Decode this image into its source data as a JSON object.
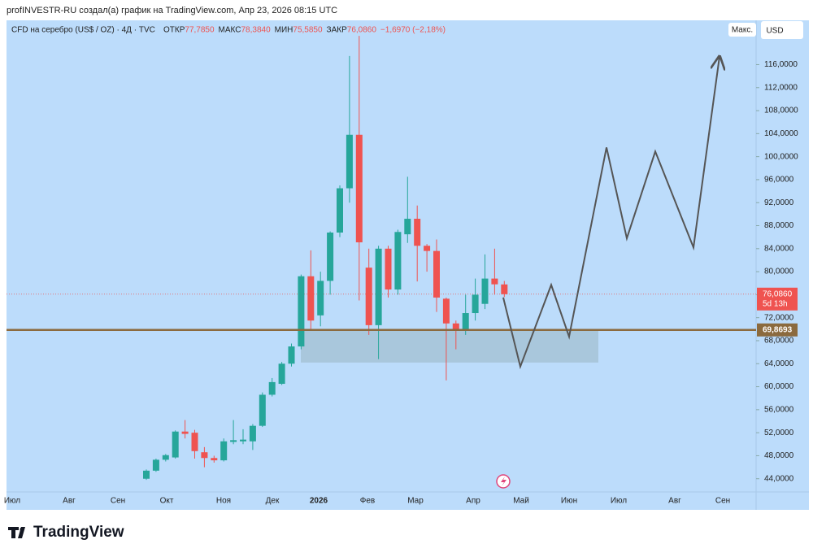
{
  "header": {
    "attribution": "profINVESTR-RU создал(а) график на TradingView.com, Апр 23, 2026 08:15 UTC"
  },
  "footer": {
    "logo": "TradingView"
  },
  "toolbar": {
    "scale_button": "Макс.",
    "currency_button": "USD"
  },
  "chart_data": {
    "type": "candlestick",
    "symbol": "CFD на серебро (US$ / OZ) · 4Д · TVC",
    "legend": [
      {
        "label": "ОТКР",
        "value": "77,7850"
      },
      {
        "label": "МАКС",
        "value": "78,3840"
      },
      {
        "label": "МИН",
        "value": "75,5850"
      },
      {
        "label": "ЗАКР",
        "value": "76,0860"
      }
    ],
    "change": "−1,6970 (−2,18%)",
    "up_color": "#26a69a",
    "down_color": "#ef5350",
    "x_labels": [
      "Июл",
      "Авг",
      "Сен",
      "Окт",
      "Ноя",
      "Дек",
      "2026",
      "Фев",
      "Мар",
      "Апр",
      "Май",
      "Июн",
      "Июл",
      "Авг",
      "Сен"
    ],
    "candles": {
      "open": [
        44.0,
        45.4,
        47.3,
        47.7,
        52.2,
        52.0,
        48.6,
        47.6,
        47.2,
        50.4,
        50.5,
        50.5,
        53.2,
        58.6,
        60.5,
        64.0,
        67.0,
        79.2,
        72.4,
        78.4,
        86.8,
        94.5,
        103.8,
        80.7,
        70.7,
        84.0,
        76.9,
        86.5,
        89.2,
        84.5,
        83.6,
        75.3,
        71.0,
        69.8,
        72.8,
        74.4,
        78.8,
        77.785
      ],
      "high": [
        45.6,
        47.5,
        48.3,
        52.4,
        54.2,
        52.5,
        49.5,
        48.0,
        51.0,
        54.2,
        52.6,
        53.5,
        59.0,
        61.5,
        64.3,
        67.5,
        79.5,
        83.7,
        80.0,
        87.0,
        95.0,
        117.5,
        121.0,
        84.0,
        84.5,
        84.5,
        87.3,
        96.5,
        91.5,
        84.8,
        85.6,
        75.5,
        71.5,
        76.0,
        78.8,
        83.0,
        84.0,
        78.384
      ],
      "low": [
        43.8,
        45.2,
        47.0,
        47.5,
        51.0,
        47.5,
        46.0,
        46.8,
        47.0,
        50.0,
        50.0,
        49.0,
        53.0,
        58.3,
        60.3,
        63.5,
        66.5,
        70.0,
        70.5,
        76.0,
        86.0,
        92.0,
        75.0,
        69.0,
        64.8,
        75.5,
        76.0,
        85.0,
        78.3,
        80.0,
        73.0,
        61.1,
        66.5,
        69.0,
        71.5,
        73.5,
        76.0,
        75.585
      ],
      "close": [
        45.4,
        47.3,
        48.1,
        52.2,
        51.8,
        48.8,
        47.6,
        47.2,
        50.5,
        50.7,
        50.8,
        53.2,
        58.6,
        60.8,
        64.0,
        67.0,
        79.2,
        71.5,
        78.4,
        86.8,
        94.5,
        103.8,
        85.1,
        70.7,
        84.0,
        76.9,
        86.9,
        89.2,
        84.5,
        83.6,
        75.5,
        71.0,
        69.8,
        72.8,
        76.0,
        78.8,
        77.8,
        76.086
      ]
    },
    "ylim": [
      41.7,
      123.7
    ],
    "yticks": [
      {
        "value": 44,
        "label": "44,0000"
      },
      {
        "value": 48,
        "label": "48,0000"
      },
      {
        "value": 52,
        "label": "52,0000"
      },
      {
        "value": 56,
        "label": "56,0000"
      },
      {
        "value": 60,
        "label": "60,0000"
      },
      {
        "value": 64,
        "label": "64,0000"
      },
      {
        "value": 68,
        "label": "68,0000"
      },
      {
        "value": 72,
        "label": "72,0000"
      },
      {
        "value": 76,
        "label": "76,0000"
      },
      {
        "value": 80,
        "label": "80,0000"
      },
      {
        "value": 84,
        "label": "84,0000"
      },
      {
        "value": 88,
        "label": "88,0000"
      },
      {
        "value": 92,
        "label": "92,0000"
      },
      {
        "value": 96,
        "label": "96,0000"
      },
      {
        "value": 100,
        "label": "100,0000"
      },
      {
        "value": 104,
        "label": "104,0000"
      },
      {
        "value": 108,
        "label": "108,0000"
      },
      {
        "value": 112,
        "label": "112,0000"
      },
      {
        "value": 116,
        "label": "116,0000"
      }
    ],
    "grid": false,
    "current_price": {
      "value": 76.086,
      "label": "76,0860",
      "countdown": "5d 13h",
      "color": "#ef5350"
    },
    "level": {
      "value": 69.8693,
      "label": "69,8693",
      "color": "#8b6a3e"
    },
    "zone": [
      64.2,
      69.8
    ],
    "projection": [
      75.5,
      63.5,
      77.7,
      68.7,
      101.6,
      85.8,
      100.9,
      84.2,
      117.4
    ]
  }
}
